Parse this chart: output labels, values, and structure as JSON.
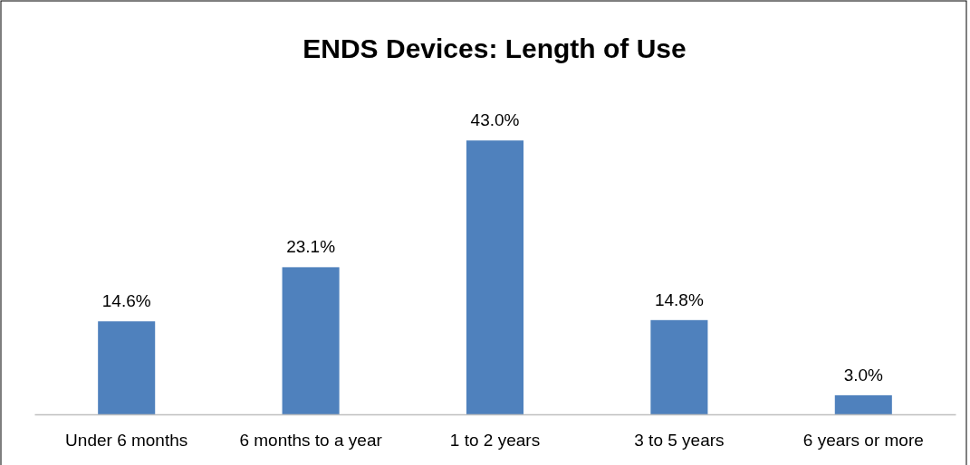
{
  "chart_data": {
    "type": "bar",
    "title": "ENDS Devices: Length of Use",
    "categories": [
      "Under 6 months",
      "6 months to a year",
      "1 to 2 years",
      "3 to 5 years",
      "6 years or more"
    ],
    "values": [
      14.6,
      23.1,
      43.0,
      14.8,
      3.0
    ],
    "value_labels": [
      "14.6%",
      "23.1%",
      "43.0%",
      "14.8%",
      "3.0%"
    ],
    "color": "#4f81bd",
    "tick_labels": "x"
  }
}
